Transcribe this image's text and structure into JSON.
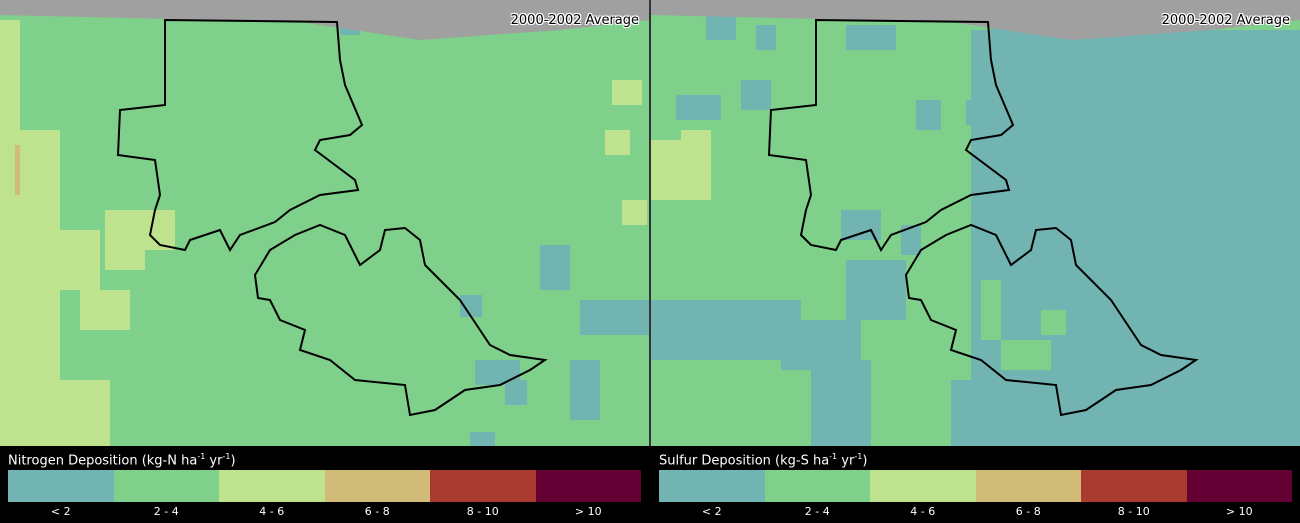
{
  "panels": [
    {
      "period": "2000-2002 Average",
      "legend_title": "Nitrogen Deposition (kg-N ha",
      "unit_tail": " yr",
      "unit_sup": "-1",
      "close": ")"
    },
    {
      "period": "2000-2002 Average",
      "legend_title": "Sulfur Deposition (kg-S ha",
      "unit_tail": " yr",
      "unit_sup": "-1",
      "close": ")"
    }
  ],
  "legend": {
    "classes": [
      "< 2",
      "2 - 4",
      "4 - 6",
      "6 - 8",
      "8 - 10",
      "> 10"
    ],
    "colors": [
      "#72b4b2",
      "#7fd08a",
      "#bfe28e",
      "#d0bb78",
      "#a83a30",
      "#650035"
    ]
  },
  "nodata_color": "#a0a0a0"
}
